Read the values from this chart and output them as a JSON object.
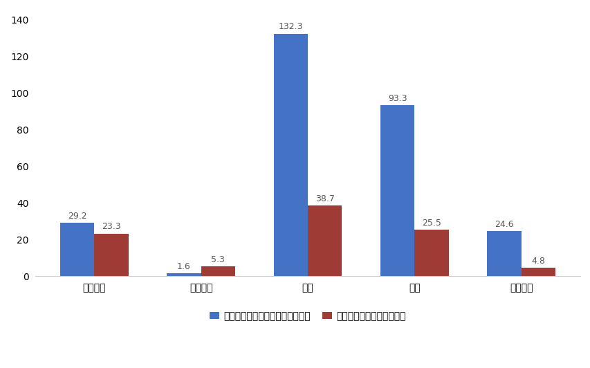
{
  "categories": [
    "房屋建筑",
    "农林牧渔",
    "市政",
    "公路",
    "能源电力"
  ],
  "blue_values": [
    29.2,
    1.6,
    132.3,
    93.3,
    24.6
  ],
  "red_values": [
    23.3,
    5.3,
    38.7,
    25.5,
    4.8
  ],
  "blue_color": "#4472C4",
  "red_color": "#9E3B34",
  "blue_label": "平均每亿元中标金额的投标人数量",
  "red_label": "平均每个标段的投标人数量",
  "ylim": [
    0,
    145
  ],
  "yticks": [
    0,
    20,
    40,
    60,
    80,
    100,
    120,
    140
  ],
  "bar_width": 0.32,
  "background_color": "#FFFFFF",
  "label_fontsize": 9,
  "tick_fontsize": 10,
  "legend_fontsize": 10
}
